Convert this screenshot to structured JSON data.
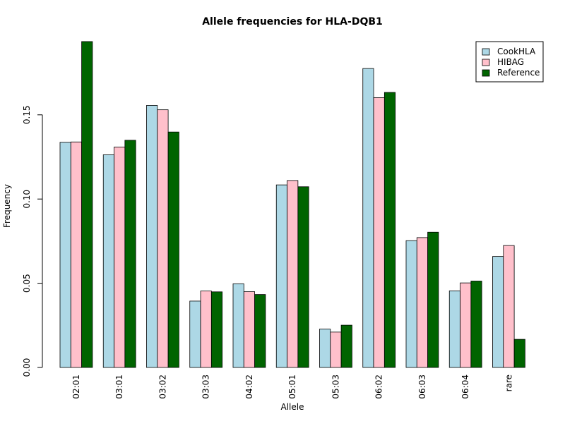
{
  "chart_data": {
    "type": "bar",
    "title": "Allele frequencies for HLA-DQB1",
    "xlabel": "Allele",
    "ylabel": "Frequency",
    "categories": [
      "02:01",
      "03:01",
      "03:02",
      "03:03",
      "04:02",
      "05:01",
      "05:03",
      "06:02",
      "06:03",
      "06:04",
      "rare"
    ],
    "series": [
      {
        "name": "CookHLA",
        "color": "#add8e6",
        "values": [
          0.1337,
          0.1263,
          0.1556,
          0.0394,
          0.0497,
          0.1084,
          0.0228,
          0.1775,
          0.0753,
          0.0455,
          0.0659
        ]
      },
      {
        "name": "HIBAG",
        "color": "#ffc0cb",
        "values": [
          0.1339,
          0.1309,
          0.153,
          0.0454,
          0.045,
          0.111,
          0.021,
          0.1602,
          0.0771,
          0.0502,
          0.0724
        ]
      },
      {
        "name": "Reference",
        "color": "#006400",
        "values": [
          0.1935,
          0.1349,
          0.1398,
          0.0449,
          0.0433,
          0.1073,
          0.0251,
          0.1633,
          0.0803,
          0.0513,
          0.0167
        ]
      }
    ],
    "ylim": [
      0,
      0.1935
    ],
    "yticks": [
      0.0,
      0.05,
      0.1,
      0.15
    ],
    "ytick_labels": [
      "0.00",
      "0.05",
      "0.10",
      "0.15"
    ],
    "grid": false,
    "legend_position": "top-right"
  }
}
